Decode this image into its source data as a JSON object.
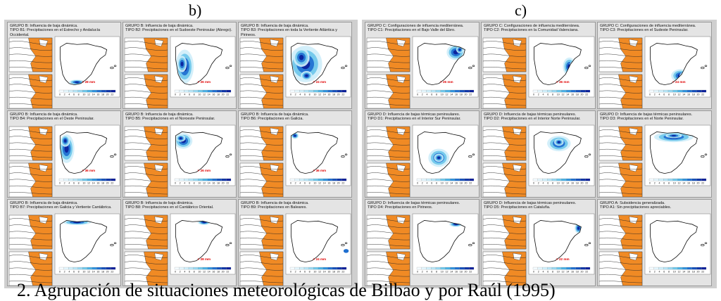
{
  "labels": {
    "b": "b)",
    "c": "c)"
  },
  "caption": "2. Agrupación de situaciones meteorológicas de Bilbao y por Raúl (1995)",
  "colors": {
    "ocean": "#ffffff",
    "land_synoptic": "#f08a24",
    "precip_light": "#cfeefa",
    "precip_mid": "#6ec7ea",
    "precip_high": "#1f6fd0",
    "precip_max": "#0a1f9a",
    "marker": "#e00000"
  },
  "legend_ticks": [
    "0",
    "2",
    "4",
    "6",
    "8",
    "10",
    "12",
    "14",
    "16",
    "18",
    "20",
    "22"
  ],
  "group_b": [
    {
      "line1": "GRUPO B: Influencia de baja dinámica.",
      "line2": "TIPO B1: Precipitaciones en el Estrecho y Andalucía",
      "line3": "Occidental.",
      "marker": "> 28 mm",
      "region": "south"
    },
    {
      "line1": "GRUPO B: Influencia de baja dinámica.",
      "line2": "TIPO B2: Precipitaciones en el Sudoeste Peninsular (Ábrego).",
      "line3": "",
      "marker": "> 26 mm",
      "region": "southwest"
    },
    {
      "line1": "GRUPO B: Influencia de baja dinámica.",
      "line2": "TIPO B3: Precipitaciones en toda la Vertiente Atlántica y",
      "line3": "Pirineos.",
      "marker": "> 24 mm",
      "region": "atlantic"
    },
    {
      "line1": "GRUPO B: Influencia de baja dinámica.",
      "line2": "TIPO B4: Precipitaciones en el Oeste Peninsular.",
      "line3": "",
      "marker": "> 36 mm",
      "region": "west"
    },
    {
      "line1": "GRUPO B: Influencia de baja dinámica.",
      "line2": "TIPO B5: Precipitaciones en el Noroeste Peninsular.",
      "line3": "",
      "marker": "> 26 mm",
      "region": "northwest"
    },
    {
      "line1": "GRUPO B: Influencia de baja dinámica.",
      "line2": "TIPO B6: Precipitaciones en Galicia.",
      "line3": "",
      "marker": "> 36 mm",
      "region": "galicia"
    },
    {
      "line1": "GRUPO B: Influencia de baja dinámica.",
      "line2": "TIPO B7: Precipitaciones en Galicia y Vertiente Cantábrica.",
      "line3": "",
      "marker": "",
      "region": "cantabria"
    },
    {
      "line1": "GRUPO B: Influencia de baja dinámica.",
      "line2": "TIPO B8: Precipitaciones en el Cantábrico Oriental.",
      "line3": "",
      "marker": "> 28 mm",
      "region": "eastcantabria"
    },
    {
      "line1": "GRUPO B: Influencia de baja dinámica.",
      "line2": "TIPO B9: Precipitaciones en Baleares.",
      "line3": "",
      "marker": "> 24 mm",
      "region": "balearic"
    }
  ],
  "group_c": [
    {
      "line1": "GRUPO C: Configuraciones de influencia mediterránea.",
      "line2": "TIPO C1: Precipitaciones en el Bajo Valle del Ebro.",
      "line3": "",
      "marker": "> 26 mm",
      "region": "ebro"
    },
    {
      "line1": "GRUPO C: Configuraciones de influencia mediterránea.",
      "line2": "TIPO C2: Precipitaciones en la Comunidad Valenciana.",
      "line3": "",
      "marker": "> 36 mm",
      "region": "valencia"
    },
    {
      "line1": "GRUPO C: Configuraciones de influencia mediterránea.",
      "line2": "TIPO C3: Precipitaciones en el Sudeste Peninsular.",
      "line3": "",
      "marker": "> 24 mm",
      "region": "southeast"
    },
    {
      "line1": "GRUPO D: Influencia de bajas térmicas peninsulares.",
      "line2": "TIPO D1: Precipitaciones en el Interior Sur Peninsular.",
      "line3": "",
      "marker": "",
      "region": "interiorsouth"
    },
    {
      "line1": "GRUPO D: Influencia de bajas térmicas peninsulares.",
      "line2": "TIPO D2: Precipitaciones en el Interior Norte Peninsular.",
      "line3": "",
      "marker": "",
      "region": "interiornorth"
    },
    {
      "line1": "GRUPO D: Influencia de bajas térmicas peninsulares.",
      "line2": "TIPO D3: Precipitaciones en el Norte Peninsular.",
      "line3": "",
      "marker": "",
      "region": "north"
    },
    {
      "line1": "GRUPO D: Influencia de bajas térmicas peninsulares.",
      "line2": "TIPO D4: Precipitaciones en Pirineos.",
      "line3": "",
      "marker": "",
      "region": "pyrenees"
    },
    {
      "line1": "GRUPO D: Influencia de bajas térmicas peninsulares.",
      "line2": "TIPO D5: Precipitaciones en Cataluña.",
      "line3": "",
      "marker": "> 22 mm",
      "region": "catalonia"
    },
    {
      "line1": "GRUPO A: Subsidencia generalizada.",
      "line2": "TIPO A1: Sin precipitaciones apreciables.",
      "line3": "",
      "marker": "",
      "region": "none"
    }
  ]
}
